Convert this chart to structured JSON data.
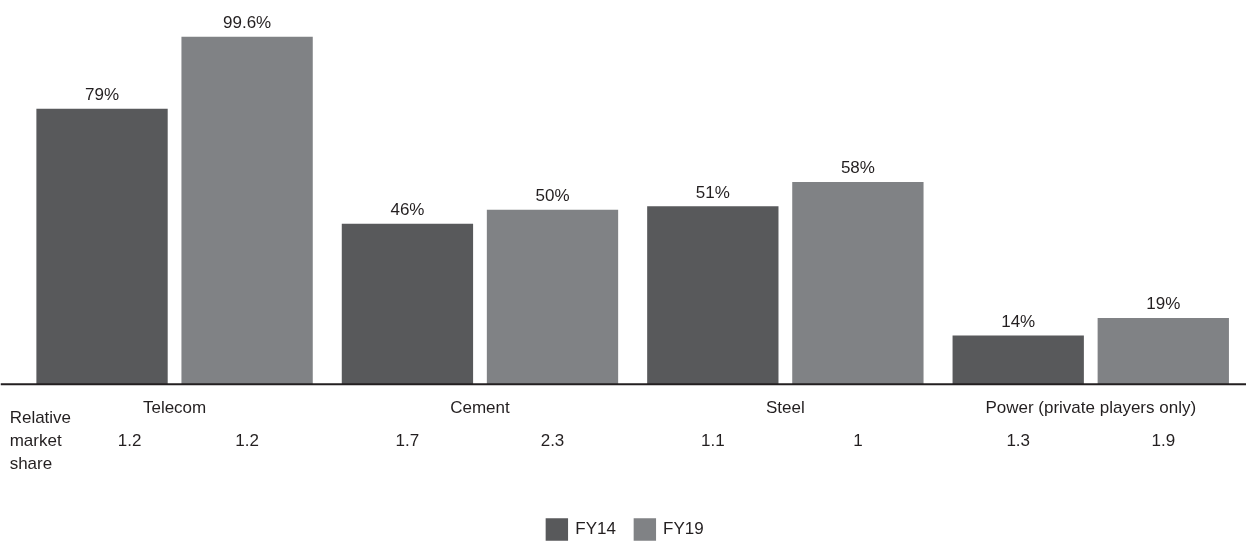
{
  "chart_data": {
    "type": "bar",
    "categories": [
      "Telecom",
      "Cement",
      "Steel",
      "Power (private players only)"
    ],
    "series": [
      {
        "name": "FY14",
        "color": "#58595b",
        "values": [
          79,
          46,
          51,
          14
        ],
        "value_labels": [
          "79%",
          "46%",
          "51%",
          "14%"
        ]
      },
      {
        "name": "FY19",
        "color": "#808285",
        "values": [
          99.6,
          50,
          58,
          19
        ],
        "value_labels": [
          "99.6%",
          "50%",
          "58%",
          "19%"
        ]
      }
    ],
    "ylim": [
      0,
      110
    ],
    "tick_labels": "x",
    "grid": false,
    "legend": "bottom",
    "annotations": [
      "Relative market share",
      "1.2",
      "1.2",
      "1.7",
      "2.3",
      "1.1",
      "1",
      "1.3",
      "1.9"
    ]
  }
}
